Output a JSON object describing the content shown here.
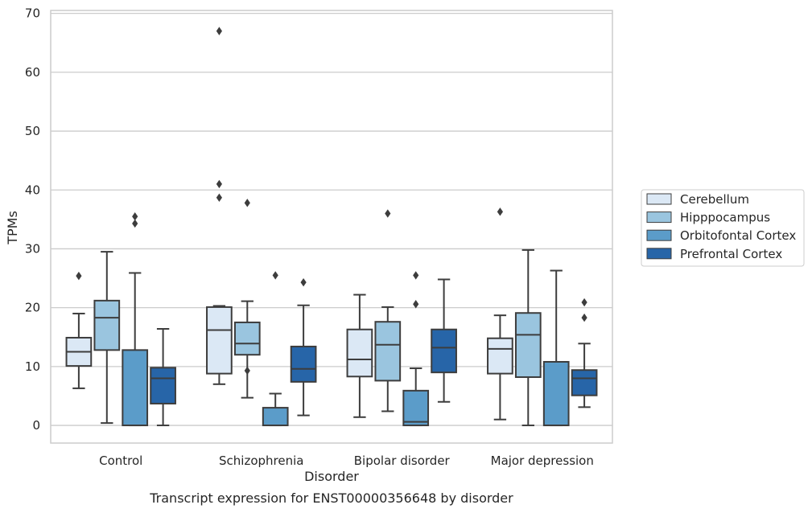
{
  "chart_data": {
    "type": "box",
    "categories": [
      "Control",
      "Schizophrenia",
      "Bipolar disorder",
      "Major depression"
    ],
    "xlabel": "Disorder",
    "ylabel": "TPMs",
    "ylim": [
      -3,
      70.5
    ],
    "yticks": [
      0,
      10,
      20,
      30,
      40,
      50,
      60,
      70
    ],
    "grid": "horizontal",
    "legend_position": "right",
    "caption": "Transcript expression for ENST00000356648 by disorder",
    "series": [
      {
        "name": "Cerebellum",
        "color": "#dbe8f5",
        "boxes": [
          {
            "low": 6.3,
            "q1": 10.1,
            "median": 12.5,
            "q3": 14.9,
            "high": 19.0,
            "outliers": [
              25.4
            ]
          },
          {
            "low": 7.0,
            "q1": 8.8,
            "median": 16.2,
            "q3": 20.1,
            "high": 20.3,
            "outliers": [
              67.0,
              41.0,
              38.7
            ]
          },
          {
            "low": 1.4,
            "q1": 8.3,
            "median": 11.2,
            "q3": 16.3,
            "high": 22.2,
            "outliers": []
          },
          {
            "low": 1.0,
            "q1": 8.8,
            "median": 13.0,
            "q3": 14.8,
            "high": 18.7,
            "outliers": [
              36.3
            ]
          }
        ]
      },
      {
        "name": "Hipppocampus",
        "color": "#9ac5df",
        "boxes": [
          {
            "low": 0.4,
            "q1": 12.8,
            "median": 18.3,
            "q3": 21.2,
            "high": 29.5,
            "outliers": []
          },
          {
            "low": 4.7,
            "q1": 12.0,
            "median": 13.9,
            "q3": 17.5,
            "high": 21.1,
            "outliers": [
              37.8,
              9.3
            ]
          },
          {
            "low": 2.4,
            "q1": 7.6,
            "median": 13.7,
            "q3": 17.6,
            "high": 20.1,
            "outliers": [
              36.0
            ]
          },
          {
            "low": 0.0,
            "q1": 8.2,
            "median": 15.4,
            "q3": 19.1,
            "high": 29.8,
            "outliers": []
          }
        ]
      },
      {
        "name": "Orbitofontal Cortex",
        "color": "#5b9cc9",
        "boxes": [
          {
            "low": 0.0,
            "q1": 0.0,
            "median": 0.0,
            "q3": 12.8,
            "high": 25.9,
            "outliers": [
              35.5,
              34.3
            ]
          },
          {
            "low": 0.0,
            "q1": 0.0,
            "median": 0.0,
            "q3": 3.0,
            "high": 5.4,
            "outliers": [
              25.5
            ]
          },
          {
            "low": 0.0,
            "q1": 0.0,
            "median": 0.6,
            "q3": 5.9,
            "high": 9.7,
            "outliers": [
              25.5,
              20.6
            ]
          },
          {
            "low": 0.0,
            "q1": 0.0,
            "median": 0.0,
            "q3": 10.8,
            "high": 26.3,
            "outliers": []
          }
        ]
      },
      {
        "name": "Prefrontal Cortex",
        "color": "#2765a8",
        "boxes": [
          {
            "low": 0.0,
            "q1": 3.7,
            "median": 8.0,
            "q3": 9.8,
            "high": 16.4,
            "outliers": []
          },
          {
            "low": 1.7,
            "q1": 7.4,
            "median": 9.6,
            "q3": 13.4,
            "high": 20.4,
            "outliers": [
              24.3
            ]
          },
          {
            "low": 4.0,
            "q1": 9.0,
            "median": 13.2,
            "q3": 16.3,
            "high": 24.8,
            "outliers": []
          },
          {
            "low": 3.1,
            "q1": 5.1,
            "median": 8.0,
            "q3": 9.4,
            "high": 13.9,
            "outliers": [
              20.9,
              18.3
            ]
          }
        ]
      }
    ]
  }
}
